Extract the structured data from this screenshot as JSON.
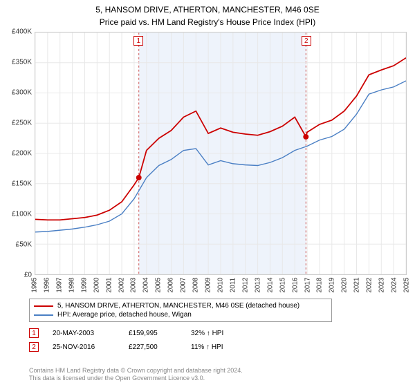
{
  "title": "5, HANSOM DRIVE, ATHERTON, MANCHESTER, M46 0SE",
  "subtitle": "Price paid vs. HM Land Registry's House Price Index (HPI)",
  "chart": {
    "type": "line",
    "background_color": "#ffffff",
    "grid_color": "#e8e8e8",
    "border_color": "#cccccc",
    "shaded_region_color": "#eef3fb",
    "shaded_region_border": "#cc5555",
    "ylim": [
      0,
      400000
    ],
    "ytick_step": 50000,
    "y_ticks": [
      "£0",
      "£50K",
      "£100K",
      "£150K",
      "£200K",
      "£250K",
      "£300K",
      "£350K",
      "£400K"
    ],
    "x_years": [
      1995,
      1996,
      1997,
      1998,
      1999,
      2000,
      2001,
      2002,
      2003,
      2004,
      2005,
      2006,
      2007,
      2008,
      2009,
      2010,
      2011,
      2012,
      2013,
      2014,
      2015,
      2016,
      2017,
      2018,
      2019,
      2020,
      2021,
      2022,
      2023,
      2024,
      2025
    ],
    "series": [
      {
        "name": "property",
        "color": "#cc0000",
        "line_width": 1.8,
        "data": [
          [
            1995,
            91000
          ],
          [
            1996,
            90000
          ],
          [
            1997,
            90000
          ],
          [
            1998,
            92000
          ],
          [
            1999,
            94000
          ],
          [
            2000,
            98000
          ],
          [
            2001,
            106000
          ],
          [
            2002,
            120000
          ],
          [
            2003,
            148000
          ],
          [
            2003.38,
            159995
          ],
          [
            2004,
            205000
          ],
          [
            2005,
            225000
          ],
          [
            2006,
            238000
          ],
          [
            2007,
            260000
          ],
          [
            2008,
            270000
          ],
          [
            2009,
            233000
          ],
          [
            2010,
            242000
          ],
          [
            2011,
            235000
          ],
          [
            2012,
            232000
          ],
          [
            2013,
            230000
          ],
          [
            2014,
            236000
          ],
          [
            2015,
            245000
          ],
          [
            2016,
            260000
          ],
          [
            2016.9,
            227500
          ],
          [
            2017,
            235000
          ],
          [
            2018,
            248000
          ],
          [
            2019,
            255000
          ],
          [
            2020,
            270000
          ],
          [
            2021,
            295000
          ],
          [
            2022,
            330000
          ],
          [
            2023,
            338000
          ],
          [
            2024,
            345000
          ],
          [
            2025,
            358000
          ]
        ]
      },
      {
        "name": "hpi",
        "color": "#4a7fc4",
        "line_width": 1.4,
        "data": [
          [
            1995,
            70000
          ],
          [
            1996,
            71000
          ],
          [
            1997,
            73000
          ],
          [
            1998,
            75000
          ],
          [
            1999,
            78000
          ],
          [
            2000,
            82000
          ],
          [
            2001,
            88000
          ],
          [
            2002,
            100000
          ],
          [
            2003,
            125000
          ],
          [
            2004,
            160000
          ],
          [
            2005,
            180000
          ],
          [
            2006,
            190000
          ],
          [
            2007,
            205000
          ],
          [
            2008,
            208000
          ],
          [
            2009,
            181000
          ],
          [
            2010,
            188000
          ],
          [
            2011,
            183000
          ],
          [
            2012,
            181000
          ],
          [
            2013,
            180000
          ],
          [
            2014,
            185000
          ],
          [
            2015,
            193000
          ],
          [
            2016,
            205000
          ],
          [
            2017,
            212000
          ],
          [
            2018,
            222000
          ],
          [
            2019,
            228000
          ],
          [
            2020,
            240000
          ],
          [
            2021,
            265000
          ],
          [
            2022,
            298000
          ],
          [
            2023,
            305000
          ],
          [
            2024,
            310000
          ],
          [
            2025,
            320000
          ]
        ]
      }
    ],
    "shaded_start_year": 2003.38,
    "shaded_end_year": 2016.9,
    "markers": [
      {
        "id": "1",
        "x_year": 2003.38,
        "y_value": 159995
      },
      {
        "id": "2",
        "x_year": 2016.9,
        "y_value": 227500
      }
    ]
  },
  "legend": {
    "items": [
      {
        "color": "#cc0000",
        "label": "5, HANSOM DRIVE, ATHERTON, MANCHESTER, M46 0SE (detached house)"
      },
      {
        "color": "#4a7fc4",
        "label": "HPI: Average price, detached house, Wigan"
      }
    ]
  },
  "transactions": [
    {
      "id": "1",
      "date": "20-MAY-2003",
      "price": "£159,995",
      "pct": "32% ↑ HPI"
    },
    {
      "id": "2",
      "date": "25-NOV-2016",
      "price": "£227,500",
      "pct": "11% ↑ HPI"
    }
  ],
  "footer_line1": "Contains HM Land Registry data © Crown copyright and database right 2024.",
  "footer_line2": "This data is licensed under the Open Government Licence v3.0."
}
